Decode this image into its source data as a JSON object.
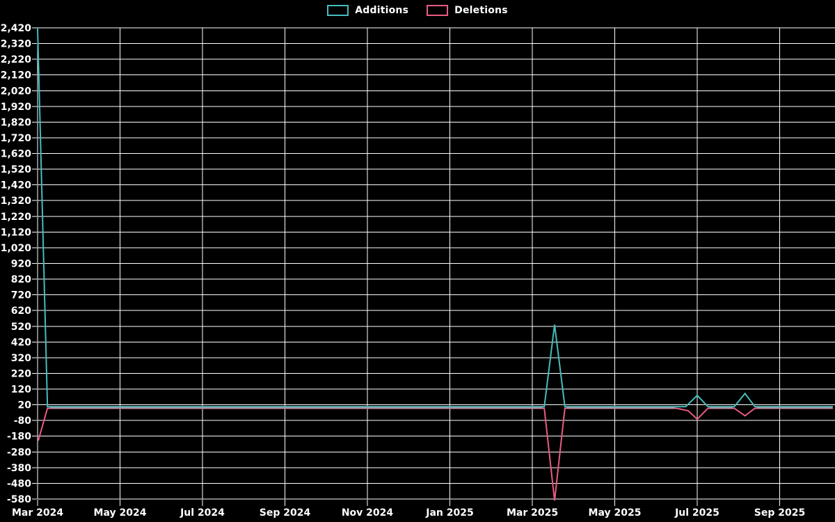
{
  "chart_data": {
    "type": "line",
    "title": "",
    "background_color": "#000000",
    "grid_color": "#ffffff",
    "text_color": "#ffffff",
    "overlap_line_color": "#8fa2ac",
    "legend": [
      {
        "label": "Additions",
        "color": "#46bdbd"
      },
      {
        "label": "Deletions",
        "color": "#ea5c80"
      }
    ],
    "legend_position": "top-center",
    "grid": "on",
    "x_axis": {
      "tick_labels": [
        "Mar 2024",
        "May 2024",
        "Jul 2024",
        "Sep 2024",
        "Nov 2024",
        "Jan 2025",
        "Mar 2025",
        "May 2025",
        "Jul 2025",
        "Sep 2025"
      ],
      "months_per_tick": 2,
      "data_start_month_offset": 0,
      "data_end_month_offset": 19.28
    },
    "y_axis": {
      "max": 2420,
      "min": -580,
      "tick_step": 100,
      "tick_labels": [
        "2,420",
        "2,320",
        "2,220",
        "2,120",
        "2,020",
        "1,920",
        "1,820",
        "1,720",
        "1,620",
        "1,520",
        "1,420",
        "1,320",
        "1,220",
        "1,120",
        "1,020",
        "920",
        "820",
        "720",
        "620",
        "520",
        "420",
        "320",
        "220",
        "120",
        "20",
        "-80",
        "-180",
        "-280",
        "-380",
        "-480",
        "-580"
      ]
    },
    "series": [
      {
        "name": "Additions",
        "color": "#46bdbd",
        "points": [
          [
            0,
            2420
          ],
          [
            0.24,
            8
          ],
          [
            12.29,
            8
          ],
          [
            12.54,
            530
          ],
          [
            12.79,
            8
          ],
          [
            15.72,
            8
          ],
          [
            16.0,
            80
          ],
          [
            16.26,
            8
          ],
          [
            16.9,
            8
          ],
          [
            17.16,
            92
          ],
          [
            17.4,
            8
          ],
          [
            19.28,
            8
          ]
        ],
        "note": "x = months after Mar 2024; flat near 0 between spikes"
      },
      {
        "name": "Deletions",
        "color": "#ea5c80",
        "points": [
          [
            0.02,
            -205
          ],
          [
            0.24,
            -2
          ],
          [
            12.29,
            -2
          ],
          [
            12.54,
            -590
          ],
          [
            12.79,
            -2
          ],
          [
            15.5,
            -2
          ],
          [
            15.78,
            -18
          ],
          [
            16.0,
            -72
          ],
          [
            16.26,
            -2
          ],
          [
            16.9,
            -2
          ],
          [
            17.16,
            -50
          ],
          [
            17.4,
            -2
          ],
          [
            19.28,
            -2
          ]
        ],
        "note": "x = months after Mar 2024; flat near 0 between spikes"
      }
    ],
    "overlap_segments": [
      [
        0.3,
        12.25
      ],
      [
        12.83,
        15.46
      ],
      [
        16.3,
        16.86
      ],
      [
        17.44,
        19.28
      ]
    ],
    "overlap_value": 2,
    "annotations": [
      {
        "when": "early Mar 2024",
        "additions": 2420,
        "deletions": -205
      },
      {
        "when": "mid Mar 2025",
        "additions": 530,
        "deletions": -590
      },
      {
        "when": "early Jul 2025",
        "additions": 80,
        "deletions": -72
      },
      {
        "when": "mid Aug 2025",
        "additions": 92,
        "deletions": -50
      }
    ]
  }
}
